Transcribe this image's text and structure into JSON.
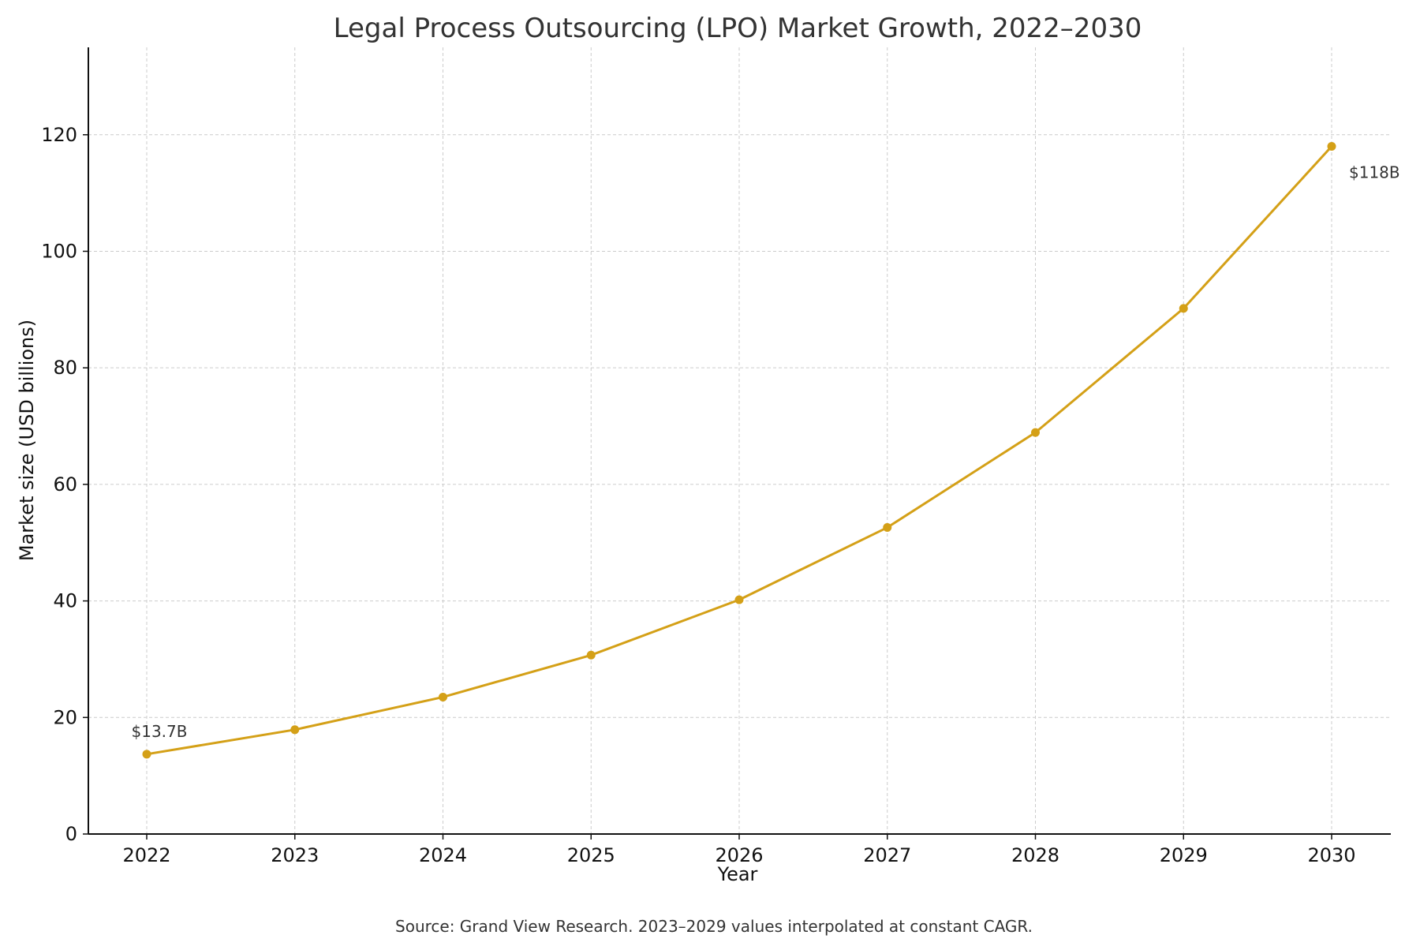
{
  "chart_data": {
    "type": "line",
    "title": "Legal Process Outsourcing (LPO) Market Growth, 2022–2030",
    "xlabel": "Year",
    "ylabel": "Market size (USD billions)",
    "source_note": "Source: Grand View Research. 2023–2029 values interpolated at constant CAGR.",
    "x": [
      "2022",
      "2023",
      "2024",
      "2025",
      "2026",
      "2027",
      "2028",
      "2029",
      "2030"
    ],
    "series": [
      {
        "values": [
          13.7,
          17.9,
          23.5,
          30.7,
          40.2,
          52.6,
          68.9,
          90.2,
          118.0
        ]
      }
    ],
    "annotations": [
      {
        "x": "2022",
        "y": 13.7,
        "text": "$13.7B"
      },
      {
        "x": "2030",
        "y": 118.0,
        "text": "$118B"
      }
    ],
    "ylim": [
      0,
      135
    ],
    "yticks": [
      0,
      20,
      40,
      60,
      80,
      100,
      120
    ],
    "grid": true,
    "line_color": "#D4A017"
  }
}
